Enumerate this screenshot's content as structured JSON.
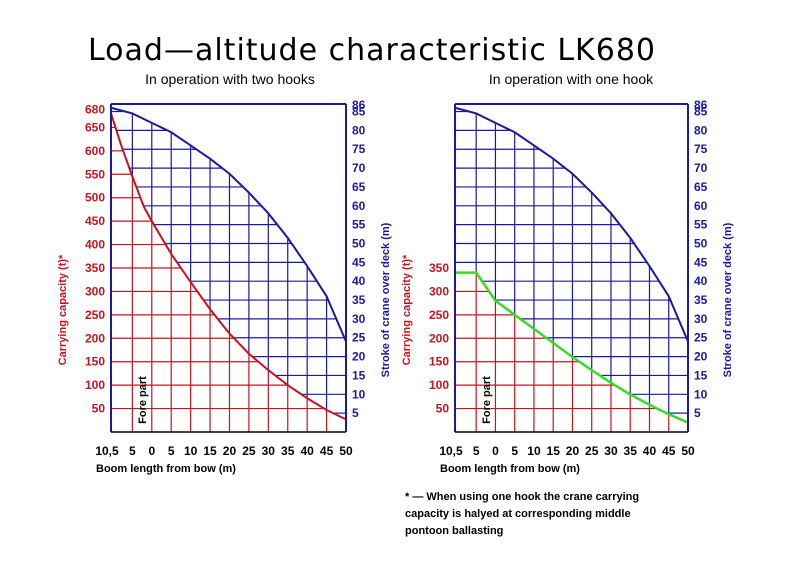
{
  "title": "Load—altitude characteristic LK680",
  "footnote": {
    "lines": [
      "* — When using one hook the crane carrying",
      "capacity is halyed at corresponding middle",
      "pontoon ballasting"
    ]
  },
  "colors": {
    "capacity": "#c8141e",
    "stroke": "#1a1aa0",
    "one_hook_curve": "#33dd22",
    "text": "#000000"
  },
  "chart_data": [
    {
      "type": "line",
      "subtitle": "In operation with two hooks",
      "xlabel": "Boom length from bow (m)",
      "ylabel_left": "Carrying capacity (t)*",
      "ylabel_right": "Stroke of crane over deck (m)",
      "x_tick_labels": [
        "10,5",
        "5",
        "0",
        "5",
        "10",
        "15",
        "20",
        "25",
        "30",
        "35",
        "40",
        "45",
        "50"
      ],
      "x_positions": [
        -10.5,
        -5,
        0,
        5,
        10,
        15,
        20,
        25,
        30,
        35,
        40,
        45,
        50
      ],
      "xlim": [
        -10.5,
        50
      ],
      "annotation": "Fore part",
      "left_ticks": [
        "50",
        "100",
        "150",
        "200",
        "250",
        "300",
        "350",
        "400",
        "450",
        "500",
        "550",
        "600",
        "650",
        "680"
      ],
      "right_ticks": [
        "5",
        "10",
        "15",
        "20",
        "25",
        "30",
        "35",
        "40",
        "45",
        "50",
        "55",
        "60",
        "65",
        "70",
        "75",
        "80",
        "85",
        "86"
      ],
      "ylim_capacity": [
        0,
        700
      ],
      "ylim_stroke": [
        0,
        87
      ],
      "series": [
        {
          "name": "Carrying capacity (t)",
          "axis": "left",
          "x": [
            -10.5,
            -8,
            -5,
            -2,
            0,
            5,
            10,
            15,
            20,
            25,
            30,
            35,
            40,
            45,
            50
          ],
          "y": [
            680,
            615,
            545,
            480,
            450,
            380,
            320,
            262,
            210,
            167,
            132,
            100,
            72,
            47,
            27
          ]
        },
        {
          "name": "Stroke of crane over deck (m)",
          "axis": "right",
          "x": [
            -10.5,
            -5,
            0,
            5,
            10,
            15,
            20,
            25,
            30,
            35,
            40,
            45,
            50
          ],
          "y": [
            86,
            84.5,
            82,
            79.5,
            76,
            72.5,
            68.5,
            63.5,
            58,
            51.5,
            44,
            36,
            24
          ]
        }
      ]
    },
    {
      "type": "line",
      "subtitle": "In operation with one hook",
      "xlabel": "Boom length from bow (m)",
      "ylabel_left": "Carrying capacity (t)*",
      "ylabel_right": "Stroke of crane over deck (m)",
      "x_tick_labels": [
        "10,5",
        "5",
        "0",
        "5",
        "10",
        "15",
        "20",
        "25",
        "30",
        "35",
        "40",
        "45",
        "50"
      ],
      "x_positions": [
        -10.5,
        -5,
        0,
        5,
        10,
        15,
        20,
        25,
        30,
        35,
        40,
        45,
        50
      ],
      "xlim": [
        -10.5,
        50
      ],
      "annotation": "Fore part",
      "left_ticks": [
        "50",
        "100",
        "150",
        "200",
        "250",
        "300",
        "350"
      ],
      "right_ticks": [
        "5",
        "10",
        "15",
        "20",
        "25",
        "30",
        "35",
        "40",
        "45",
        "50",
        "55",
        "60",
        "65",
        "70",
        "75",
        "80",
        "85",
        "86"
      ],
      "ylim_capacity": [
        0,
        700
      ],
      "ylim_stroke": [
        0,
        87
      ],
      "series": [
        {
          "name": "Carrying capacity (t)",
          "axis": "left",
          "x": [
            -10.5,
            -5,
            0,
            5,
            10,
            15,
            20,
            25,
            30,
            35,
            40,
            45,
            50
          ],
          "y": [
            340,
            340,
            280,
            250,
            220,
            190,
            160,
            132,
            105,
            80,
            58,
            38,
            20
          ]
        },
        {
          "name": "Stroke of crane over deck (m)",
          "axis": "right",
          "x": [
            -10.5,
            -5,
            0,
            5,
            10,
            15,
            20,
            25,
            30,
            35,
            40,
            45,
            50
          ],
          "y": [
            86,
            84.5,
            82,
            79.5,
            76,
            72.5,
            68.5,
            63.5,
            58,
            51.5,
            44,
            36,
            24
          ]
        }
      ]
    }
  ]
}
